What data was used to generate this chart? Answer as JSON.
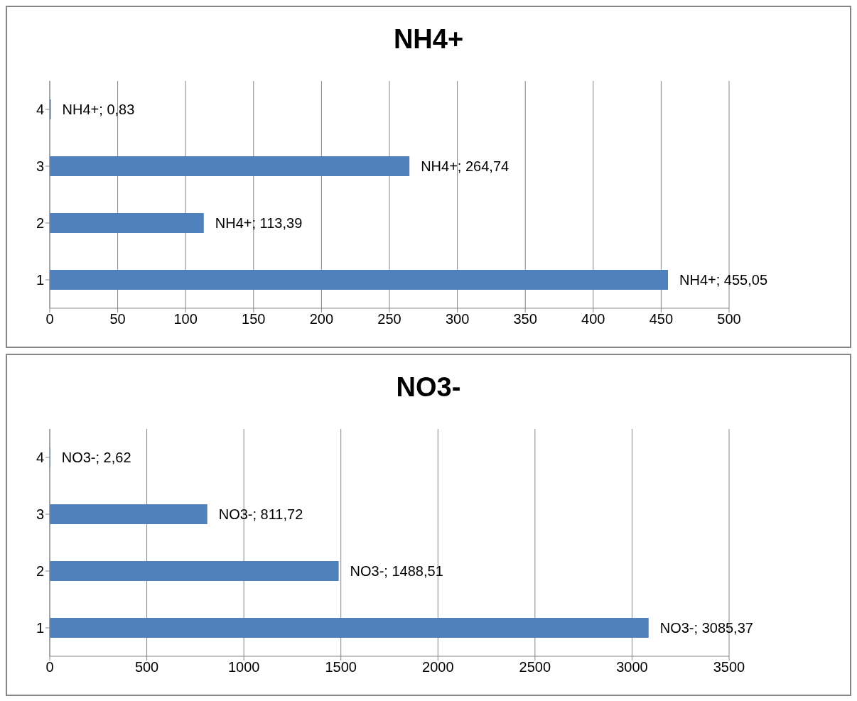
{
  "chart_data": [
    {
      "type": "bar",
      "orientation": "horizontal",
      "title": "NH4+",
      "categories": [
        "4",
        "3",
        "2",
        "1"
      ],
      "series": [
        {
          "color": "#4f81bd",
          "values": [
            0.83,
            264.74,
            113.39,
            455.05
          ],
          "value_labels": [
            "NH4+; 0,83",
            "NH4+; 264,74",
            "NH4+; 113,39",
            "NH4+; 455,05"
          ]
        }
      ],
      "xlim": [
        0,
        500
      ],
      "xticks": [
        0,
        50,
        100,
        150,
        200,
        250,
        300,
        350,
        400,
        450,
        500
      ],
      "grid": "x"
    },
    {
      "type": "bar",
      "orientation": "horizontal",
      "title": "NO3-",
      "categories": [
        "4",
        "3",
        "2",
        "1"
      ],
      "series": [
        {
          "color": "#4f81bd",
          "values": [
            2.62,
            811.72,
            1488.51,
            3085.37
          ],
          "value_labels": [
            "NO3-; 2,62",
            "NO3-; 811,72",
            "NO3-; 1488,51",
            "NO3-; 3085,37"
          ]
        }
      ],
      "xlim": [
        0,
        3500
      ],
      "xticks": [
        0,
        500,
        1000,
        1500,
        2000,
        2500,
        3000,
        3500
      ],
      "grid": "x"
    }
  ]
}
